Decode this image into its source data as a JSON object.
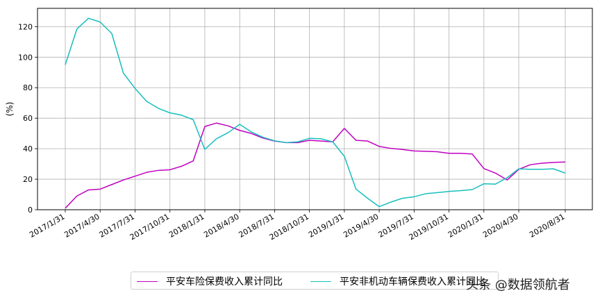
{
  "chart_data": {
    "type": "line",
    "title": "",
    "xlabel": "",
    "ylabel": "(%)",
    "ylim": [
      0,
      132
    ],
    "yticks": [
      0,
      20,
      40,
      60,
      80,
      100,
      120
    ],
    "grid": true,
    "legend_position": "bottom-center",
    "x_tick_labels": [
      "2017/1/31",
      "2017/4/30",
      "2017/7/31",
      "2017/10/31",
      "2018/1/31",
      "2018/4/30",
      "2018/7/31",
      "2018/10/31",
      "2019/1/31",
      "2019/4/30",
      "2019/7/31",
      "2019/10/31",
      "2020/1/31",
      "2020/4/30",
      "2020/8/31"
    ],
    "x": [
      "2017/1/31",
      "2017/2/28",
      "2017/3/31",
      "2017/4/30",
      "2017/5/31",
      "2017/6/30",
      "2017/7/31",
      "2017/8/31",
      "2017/9/30",
      "2017/10/31",
      "2017/11/30",
      "2017/12/31",
      "2018/1/31",
      "2018/2/28",
      "2018/3/31",
      "2018/4/30",
      "2018/5/31",
      "2018/6/30",
      "2018/7/31",
      "2018/8/31",
      "2018/9/30",
      "2018/10/31",
      "2018/11/30",
      "2018/12/31",
      "2019/1/31",
      "2019/2/28",
      "2019/3/31",
      "2019/4/30",
      "2019/5/31",
      "2019/6/30",
      "2019/7/31",
      "2019/8/31",
      "2019/9/30",
      "2019/10/31",
      "2019/11/30",
      "2019/12/31",
      "2020/1/31",
      "2020/2/29",
      "2020/3/31",
      "2020/4/30",
      "2020/5/31",
      "2020/6/30",
      "2020/7/31",
      "2020/8/31"
    ],
    "series": [
      {
        "name": "平安车险保费收入累计同比",
        "color": "#c000c0",
        "values": [
          1,
          9,
          13,
          13.5,
          16.5,
          19.5,
          22,
          24.5,
          25.8,
          26.2,
          28.5,
          32,
          54.5,
          56.8,
          55,
          52,
          50,
          47,
          45,
          44,
          44,
          45.5,
          45,
          44.5,
          53.3,
          45.5,
          45,
          41.5,
          40.2,
          39.5,
          38.5,
          38.3,
          38,
          37,
          37,
          36.5,
          27,
          24,
          19.5,
          26.5,
          29.5,
          30.5,
          31,
          31.3
        ]
      },
      {
        "name": "平安非机动车辆保费收入累计同比",
        "color": "#17bebe",
        "values": [
          95,
          118.5,
          125.5,
          123,
          115.5,
          89.5,
          79.5,
          71,
          66.5,
          63.5,
          62,
          59,
          39.5,
          46.5,
          50.5,
          56,
          51,
          47.5,
          45.2,
          44,
          44.5,
          46.8,
          46.5,
          44.5,
          35,
          13.5,
          7.5,
          2,
          5,
          7.5,
          8.5,
          10.5,
          11.2,
          12,
          12.5,
          13.2,
          17,
          16.8,
          21,
          26.8,
          26.5,
          26.5,
          26.8,
          24
        ]
      }
    ]
  },
  "watermark": "头条 @数据领航者"
}
